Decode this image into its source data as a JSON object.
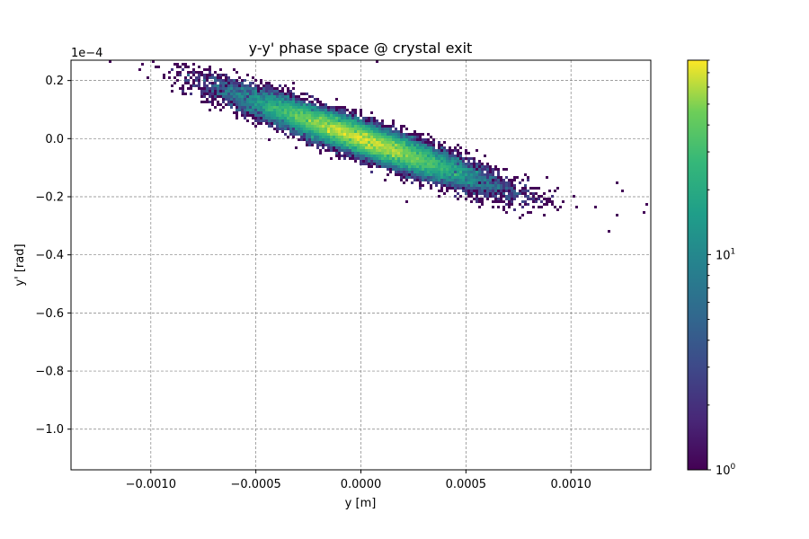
{
  "chart_data": {
    "type": "heatmap",
    "title": "y-y' phase space @ crystal exit",
    "xlabel": "y [m]",
    "ylabel": "y' [rad]",
    "y_offset_label": "1e−4",
    "xlim": [
      -0.00138,
      0.00138
    ],
    "ylim": [
      -0.000114,
      2.7e-05
    ],
    "x_ticks": [
      -0.001,
      -0.0005,
      0.0,
      0.0005,
      0.001
    ],
    "x_tick_labels": [
      "−0.0010",
      "−0.0005",
      "0.0000",
      "0.0005",
      "0.0010"
    ],
    "y_ticks": [
      2e-05,
      0.0,
      -2e-05,
      -4e-05,
      -6e-05,
      -8e-05,
      -0.0001
    ],
    "y_tick_labels": [
      "0.2",
      "0.0",
      "−0.2",
      "−0.4",
      "−0.6",
      "−0.8",
      "−1.0"
    ],
    "grid": true,
    "colormap": "viridis",
    "colorbar": {
      "scale": "log",
      "min": 1,
      "max": 80,
      "major_ticks": [
        1,
        10
      ],
      "major_tick_labels": [
        "10",
        "10"
      ],
      "major_tick_exponents": [
        "0",
        "1"
      ]
    },
    "distribution": {
      "center": [
        0.0,
        0.0
      ],
      "sigma_y": 0.00028,
      "slope": -0.0252,
      "sigma_yprime_residual": 2.8e-06,
      "peak_count": 78
    },
    "outliers": [
      [
        -0.00119,
        2.7e-05
      ],
      [
        8e-05,
        2.7e-05
      ],
      [
        -0.00085,
        1.7e-05
      ],
      [
        0.00022,
        -0.000114
      ],
      [
        0.00022,
        -2.2e-05
      ],
      [
        0.00136,
        -2.3e-05
      ],
      [
        0.00135,
        -2.5e-05
      ],
      [
        0.00112,
        -2.4e-05
      ],
      [
        0.00122,
        -1.5e-05
      ],
      [
        0.00125,
        -1.8e-05
      ]
    ]
  }
}
